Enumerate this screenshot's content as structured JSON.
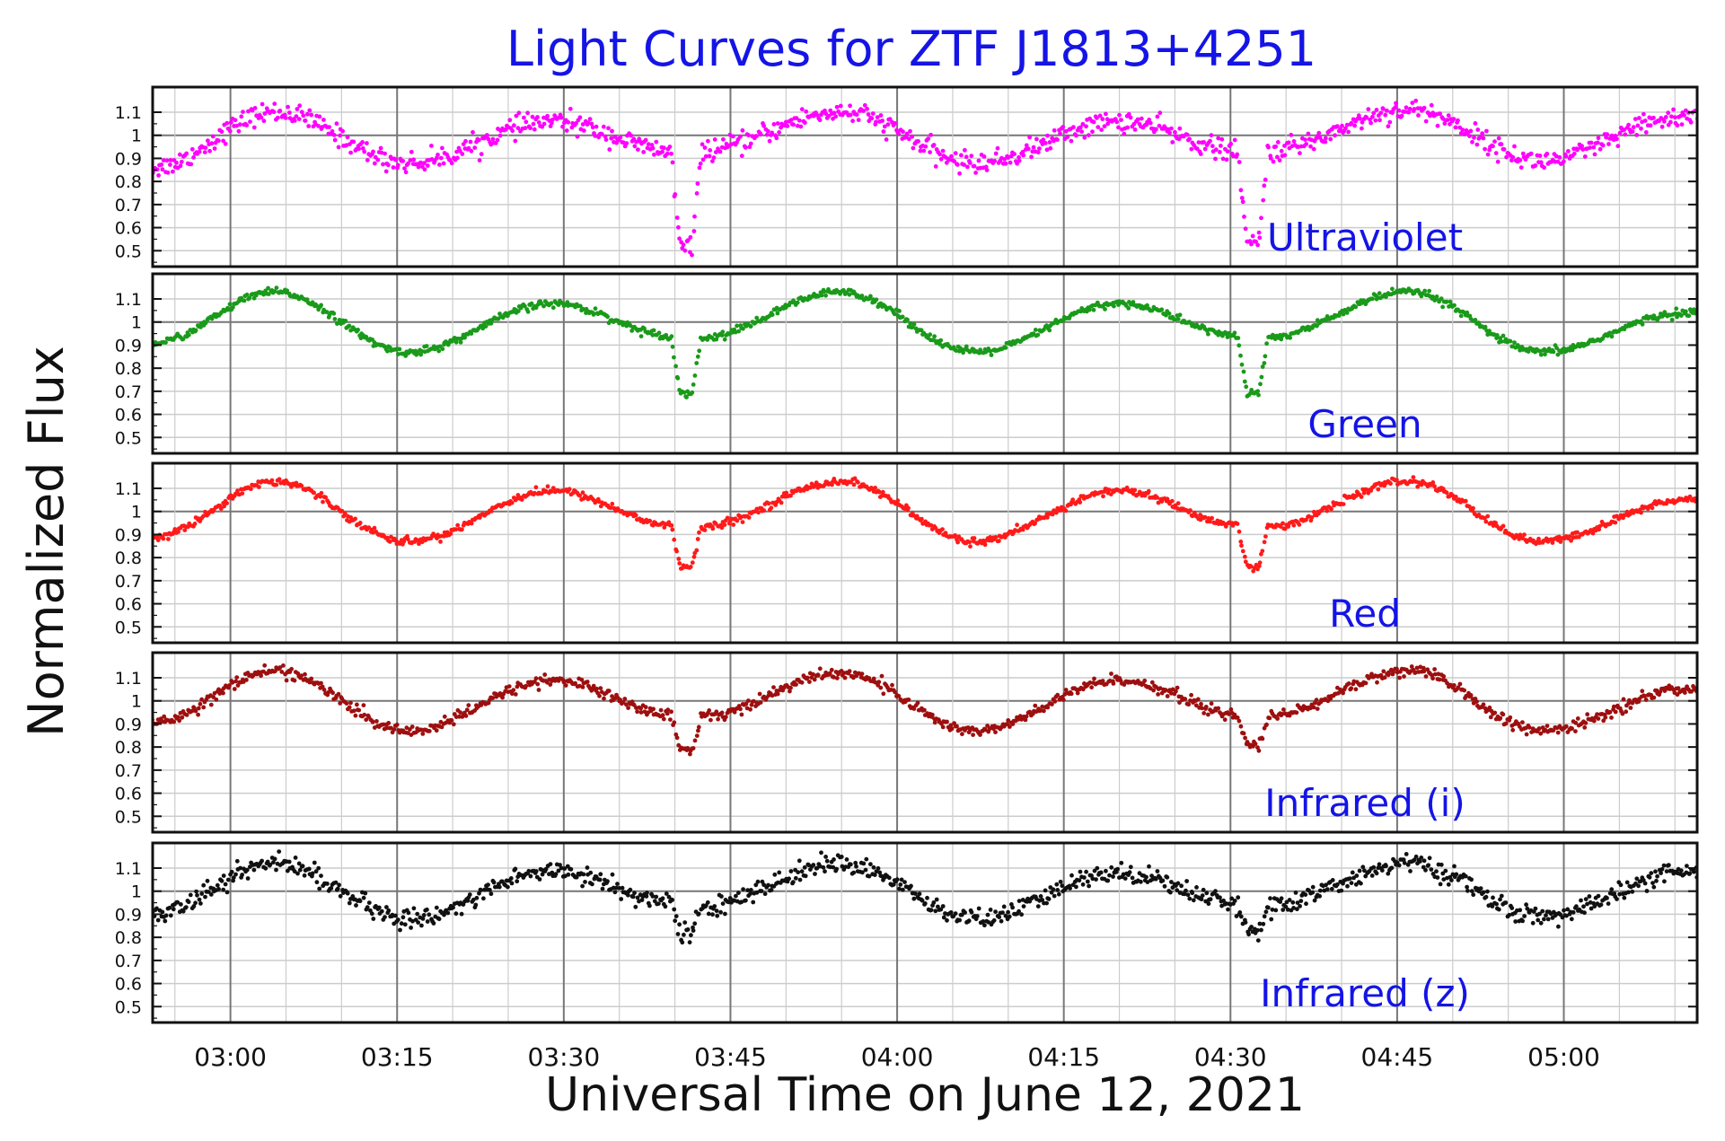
{
  "chart_data": {
    "type": "scatter",
    "title": "Light Curves for ZTF J1813+4251",
    "xlabel": "Universal Time on June 12, 2021",
    "ylabel": "Normalized Flux",
    "x_unit": "UT",
    "xlim": [
      "02:53",
      "05:12"
    ],
    "x_ticks": [
      "03:00",
      "03:15",
      "03:30",
      "03:45",
      "04:00",
      "04:15",
      "04:30",
      "04:45",
      "05:00"
    ],
    "y_ticks": [
      0.5,
      0.6,
      0.7,
      0.8,
      0.9,
      1,
      1.1
    ],
    "ylim": [
      0.47,
      1.17
    ],
    "grid": true,
    "colors": {
      "title": "#1414e6",
      "panel_labels": "#1414e6",
      "grid": "#cccccc",
      "major_grid": "#777777"
    },
    "periodic_model": {
      "period_minutes": 51.2,
      "eclipse_times": [
        "03:41",
        "04:32"
      ],
      "maxima_times": [
        "03:04",
        "03:29",
        "03:55",
        "04:20",
        "04:46",
        "05:11"
      ],
      "minima_times": [
        "03:16",
        "03:42",
        "04:07",
        "04:33",
        "04:58"
      ]
    },
    "series": [
      {
        "name": "Ultraviolet",
        "color": "#ff00ff",
        "noise": 0.022,
        "x": [
          "02:53",
          "03:04",
          "03:16",
          "03:29",
          "03:40",
          "03:41",
          "03:42",
          "03:55",
          "04:07",
          "04:20",
          "04:31",
          "04:32",
          "04:33",
          "04:46",
          "04:58",
          "05:11"
        ],
        "values": [
          0.86,
          1.1,
          0.88,
          1.06,
          0.93,
          0.51,
          0.93,
          1.1,
          0.88,
          1.06,
          0.93,
          0.53,
          0.93,
          1.11,
          0.89,
          1.08
        ]
      },
      {
        "name": "Green",
        "color": "#1a9a1a",
        "noise": 0.008,
        "x": [
          "02:53",
          "03:04",
          "03:16",
          "03:29",
          "03:40",
          "03:41",
          "03:42",
          "03:55",
          "04:07",
          "04:20",
          "04:31",
          "04:32",
          "04:33",
          "04:46",
          "04:58",
          "05:11"
        ],
        "values": [
          0.91,
          1.13,
          0.87,
          1.08,
          0.94,
          0.69,
          0.93,
          1.13,
          0.87,
          1.08,
          0.94,
          0.69,
          0.93,
          1.13,
          0.87,
          1.04
        ]
      },
      {
        "name": "Red",
        "color": "#ff1a1a",
        "noise": 0.008,
        "x": [
          "02:53",
          "03:04",
          "03:16",
          "03:29",
          "03:40",
          "03:41",
          "03:42",
          "03:55",
          "04:07",
          "04:20",
          "04:31",
          "04:32",
          "04:33",
          "04:46",
          "04:58",
          "05:11"
        ],
        "values": [
          0.89,
          1.13,
          0.87,
          1.09,
          0.94,
          0.76,
          0.93,
          1.13,
          0.87,
          1.09,
          0.94,
          0.76,
          0.93,
          1.13,
          0.87,
          1.05
        ]
      },
      {
        "name": "Infrared (i)",
        "color": "#9e0f0f",
        "noise": 0.012,
        "x": [
          "02:53",
          "03:04",
          "03:16",
          "03:29",
          "03:40",
          "03:41",
          "03:42",
          "03:55",
          "04:07",
          "04:20",
          "04:31",
          "04:32",
          "04:33",
          "04:46",
          "04:58",
          "05:11"
        ],
        "values": [
          0.91,
          1.13,
          0.87,
          1.09,
          0.94,
          0.79,
          0.93,
          1.12,
          0.87,
          1.09,
          0.94,
          0.8,
          0.93,
          1.13,
          0.87,
          1.05
        ]
      },
      {
        "name": "Infrared (z)",
        "color": "#111111",
        "noise": 0.02,
        "x": [
          "02:53",
          "03:04",
          "03:16",
          "03:29",
          "03:40",
          "03:41",
          "03:42",
          "03:55",
          "04:07",
          "04:20",
          "04:31",
          "04:32",
          "04:33",
          "04:46",
          "04:58",
          "05:11"
        ],
        "values": [
          0.91,
          1.12,
          0.88,
          1.09,
          0.95,
          0.82,
          0.93,
          1.12,
          0.88,
          1.08,
          0.95,
          0.83,
          0.93,
          1.12,
          0.89,
          1.08
        ]
      }
    ]
  }
}
